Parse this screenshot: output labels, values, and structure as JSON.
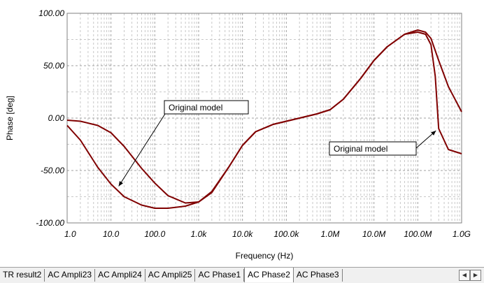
{
  "chart_data": {
    "type": "line",
    "title": "",
    "xlabel": "Frequency (Hz)",
    "ylabel": "Phase [deg]",
    "xscale": "log",
    "xlim": [
      1,
      1000000000
    ],
    "ylim": [
      -100,
      100
    ],
    "xticks": [
      {
        "value": 1,
        "label": "1.0"
      },
      {
        "value": 10,
        "label": "10.0"
      },
      {
        "value": 100,
        "label": "100.0"
      },
      {
        "value": 1000,
        "label": "1.0k"
      },
      {
        "value": 10000,
        "label": "10.0k"
      },
      {
        "value": 100000,
        "label": "100.0k"
      },
      {
        "value": 1000000,
        "label": "1.0M"
      },
      {
        "value": 10000000,
        "label": "10.0M"
      },
      {
        "value": 100000000,
        "label": "100.0M"
      },
      {
        "value": 1000000000,
        "label": "1.0G"
      }
    ],
    "yticks": [
      {
        "value": 100,
        "label": "100.00"
      },
      {
        "value": 50,
        "label": "50.00"
      },
      {
        "value": 0,
        "label": "0.00"
      },
      {
        "value": -50,
        "label": "-50.00"
      },
      {
        "value": -100,
        "label": "-100.00"
      }
    ],
    "grid": true,
    "series_color": "#800000",
    "series": [
      {
        "x": [
          1,
          2,
          5,
          10,
          20,
          50,
          100,
          200,
          500,
          1000,
          2000,
          5000,
          10000,
          20000,
          50000,
          100000,
          200000,
          500000,
          1000000,
          2000000,
          5000000,
          10000000,
          20000000,
          50000000,
          100000000,
          150000000,
          200000000,
          300000000,
          500000000,
          1000000000
        ],
        "y": [
          -7,
          -21,
          -47,
          -63,
          -75,
          -83,
          -86,
          -86,
          -84,
          -80,
          -70,
          -46,
          -26,
          -13,
          -6,
          -3,
          0,
          4,
          8,
          18,
          38,
          55,
          68,
          80,
          84,
          82,
          76,
          55,
          30,
          6
        ]
      },
      {
        "x": [
          1,
          2,
          5,
          10,
          20,
          50,
          100,
          200,
          500,
          1000,
          2000,
          5000,
          10000,
          20000,
          50000,
          100000,
          200000,
          500000,
          1000000,
          2000000,
          5000000,
          10000000,
          20000000,
          50000000,
          100000000,
          150000000,
          200000000,
          250000000,
          300000000,
          500000000,
          1000000000
        ],
        "y": [
          -2,
          -3,
          -7,
          -14,
          -27,
          -48,
          -62,
          -74,
          -81,
          -80,
          -71,
          -46,
          -26,
          -13,
          -6,
          -3,
          0,
          4,
          8,
          18,
          38,
          55,
          68,
          80,
          82,
          80,
          70,
          40,
          -10,
          -30,
          -34
        ]
      }
    ],
    "annotations": [
      {
        "text": "Original model",
        "x": 15,
        "y": -65
      },
      {
        "text": "Original model",
        "x": 260000000,
        "y": -12
      }
    ]
  },
  "tabs": [
    {
      "label": "TR result2",
      "active": false
    },
    {
      "label": "AC Ampli23",
      "active": false
    },
    {
      "label": "AC Ampli24",
      "active": false
    },
    {
      "label": "AC Ampli25",
      "active": false
    },
    {
      "label": "AC Phase1",
      "active": false
    },
    {
      "label": "AC Phase2",
      "active": true
    },
    {
      "label": "AC Phase3",
      "active": false
    }
  ],
  "tab_scroll": {
    "left_icon": "scroll-left-icon",
    "right_icon": "scroll-right-icon"
  }
}
